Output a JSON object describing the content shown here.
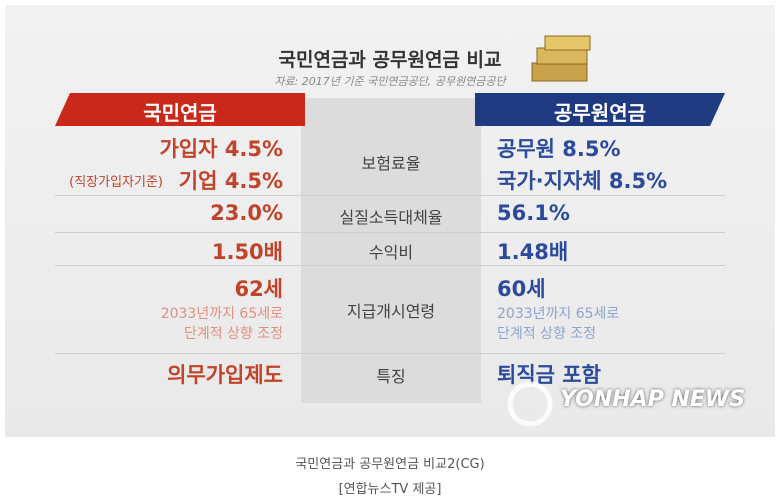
{
  "graphic": {
    "title": "국민연금과 공무원연금 비교",
    "source": "자료: 2017년 기준 국민연금공단, 공무원연금공단",
    "left_header": "국민연금",
    "right_header": "공무원연금",
    "rows": [
      {
        "label": "보험료율",
        "left": [
          "가입자 4.5%",
          "기업 4.5%"
        ],
        "left_note": "(직장가입자기준)",
        "right": [
          "공무원 8.5%",
          "국가·지자체 8.5%"
        ]
      },
      {
        "label": "실질소득대체율",
        "left": [
          "23.0%"
        ],
        "right": [
          "56.1%"
        ]
      },
      {
        "label": "수익비",
        "left": [
          "1.50배"
        ],
        "right": [
          "1.48배"
        ]
      },
      {
        "label": "지급개시연령",
        "left": [
          "62세"
        ],
        "left_sub": [
          "2033년까지 65세로",
          "단계적 상향 조정"
        ],
        "right": [
          "60세"
        ],
        "right_sub": [
          "2033년까지 65세로",
          "단계적 상향 조정"
        ]
      },
      {
        "label": "특징",
        "left": [
          "의무가입제도"
        ],
        "right": [
          "퇴직금 포함"
        ]
      }
    ],
    "watermark": "YONHAP NEWS"
  },
  "caption": {
    "line1": "국민연금과 공무원연금 비교2(CG)",
    "line2": "[연합뉴스TV 제공]"
  }
}
